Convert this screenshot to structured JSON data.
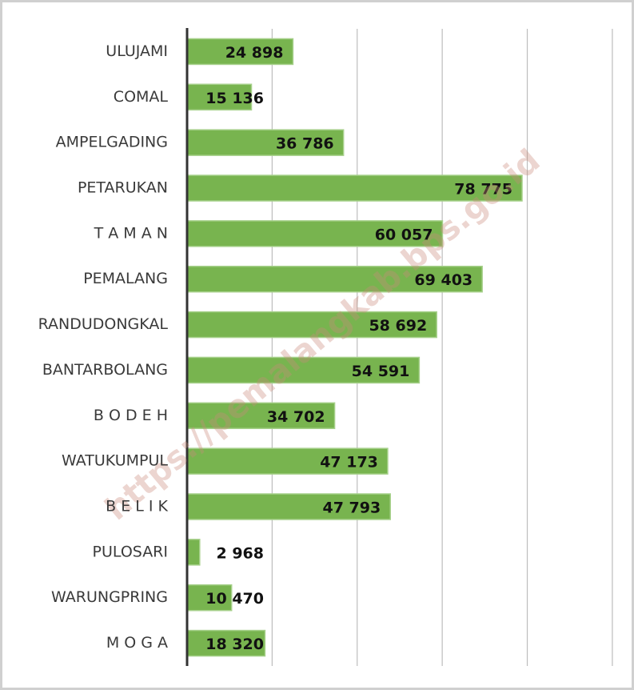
{
  "chart_data": {
    "type": "bar",
    "orientation": "horizontal",
    "annotation": "https://pemalangkab.bps.go.id",
    "categories": [
      "ULUJAMI",
      "COMAL",
      "AMPELGADING",
      "PETARUKAN",
      "T A M A N",
      "PEMALANG",
      "RANDUDONGKAL",
      "BANTARBOLANG",
      "B O D E H",
      "WATUKUMPUL",
      "B E L I K",
      "PULOSARI",
      "WARUNGPRING",
      "M O G A"
    ],
    "values": [
      24898,
      15136,
      36786,
      78775,
      60057,
      69403,
      58692,
      54591,
      34702,
      47173,
      47793,
      2968,
      10470,
      18320
    ],
    "value_labels": [
      "24 898",
      "15 136",
      "36 786",
      "78 775",
      "60 057",
      "69 403",
      "58 692",
      "54 591",
      "34 702",
      "47 173",
      "47 793",
      "2 968",
      "10 470",
      "18 320"
    ],
    "color": "#78b44f",
    "xlim": [
      0,
      105000
    ],
    "xticks": [
      0,
      20000,
      40000,
      60000,
      80000,
      100000
    ],
    "grid": true
  }
}
